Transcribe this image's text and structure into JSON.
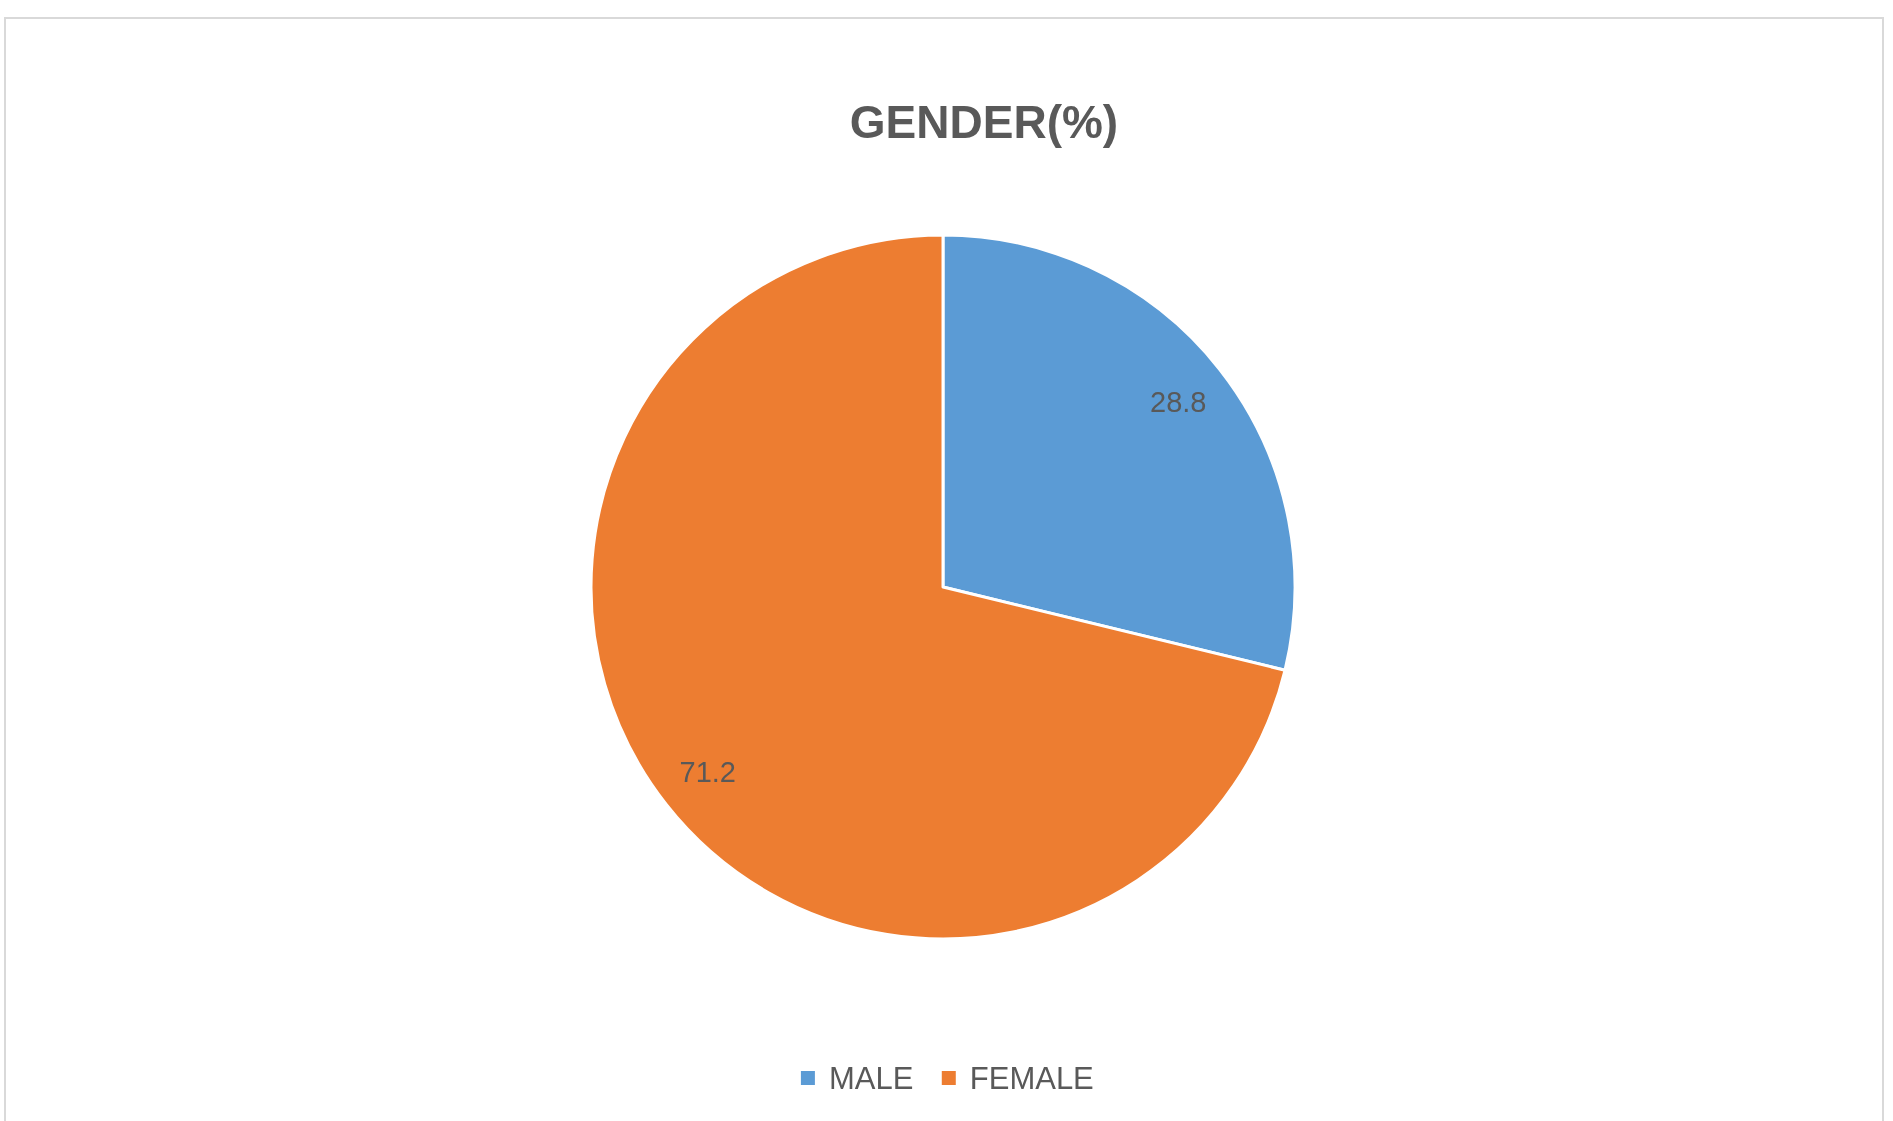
{
  "chart_data": {
    "type": "pie",
    "title": "GENDER(%)",
    "categories": [
      "MALE",
      "FEMALE"
    ],
    "values": [
      28.8,
      71.2
    ],
    "colors": [
      "#5b9bd5",
      "#ed7d31"
    ],
    "data_labels": true,
    "legend": "bottom"
  }
}
